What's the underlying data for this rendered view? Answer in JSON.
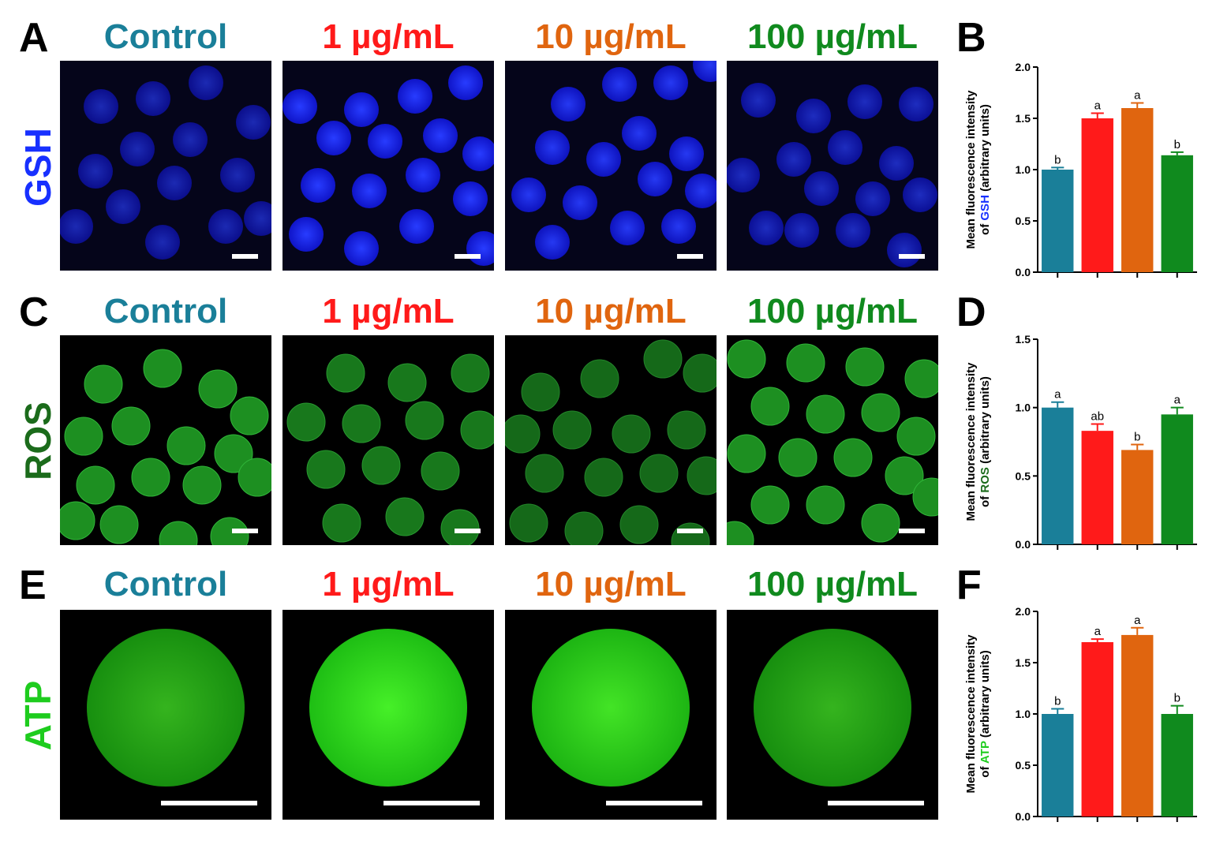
{
  "colors": {
    "control": "#1a7f99",
    "dose1": "#ff1a1a",
    "dose10": "#e0650f",
    "dose100": "#108a1e",
    "gsh": "#1730ff",
    "ros": "#1b6b1b",
    "atp": "#1ecc1e"
  },
  "groups": [
    "Control",
    "1 µg/mL",
    "10 µg/mL",
    "100 µg/mL"
  ],
  "rows": [
    {
      "letter": "A",
      "label": "GSH",
      "chart_letter": "B"
    },
    {
      "letter": "C",
      "label": "ROS",
      "chart_letter": "D"
    },
    {
      "letter": "E",
      "label": "ATP",
      "chart_letter": "F"
    }
  ],
  "chart_data": [
    {
      "type": "bar",
      "panel": "B",
      "ylabel_line1": "Mean fluorescence intensity",
      "ylabel_line2_pre": "of ",
      "ylabel_line2_hl": "GSH",
      "ylabel_line2_post": " (arbitrary units)",
      "ylim": [
        0,
        2.0
      ],
      "yticks": [
        "0.0",
        "0.5",
        "1.0",
        "1.5",
        "2.0"
      ],
      "ytick_values": [
        0,
        0.5,
        1.0,
        1.5,
        2.0
      ],
      "categories": [
        "Control",
        "1 µg/mL",
        "10 µg/mL",
        "100 µg/mL"
      ],
      "values": [
        1.0,
        1.5,
        1.6,
        1.14
      ],
      "errors": [
        0.02,
        0.05,
        0.05,
        0.03
      ],
      "letters": [
        "b",
        "a",
        "a",
        "b"
      ]
    },
    {
      "type": "bar",
      "panel": "D",
      "ylabel_line1": "Mean fluorescence intensity",
      "ylabel_line2_pre": "of ",
      "ylabel_line2_hl": "ROS",
      "ylabel_line2_post": " (arbitrary units)",
      "ylim": [
        0,
        1.5
      ],
      "yticks": [
        "0.0",
        "0.5",
        "1.0",
        "1.5"
      ],
      "ytick_values": [
        0,
        0.5,
        1.0,
        1.5
      ],
      "categories": [
        "Control",
        "1 µg/mL",
        "10 µg/mL",
        "100 µg/mL"
      ],
      "values": [
        1.0,
        0.83,
        0.69,
        0.95
      ],
      "errors": [
        0.04,
        0.05,
        0.04,
        0.05
      ],
      "letters": [
        "a",
        "ab",
        "b",
        "a"
      ]
    },
    {
      "type": "bar",
      "panel": "F",
      "ylabel_line1": "Mean fluorescence intensity",
      "ylabel_line2_pre": "of ",
      "ylabel_line2_hl": "ATP",
      "ylabel_line2_post": " (arbitrary units)",
      "ylim": [
        0,
        2.0
      ],
      "yticks": [
        "0.0",
        "0.5",
        "1.0",
        "1.5",
        "2.0"
      ],
      "ytick_values": [
        0,
        0.5,
        1.0,
        1.5,
        2.0
      ],
      "categories": [
        "Control",
        "1 µg/mL",
        "10 µg/mL",
        "100 µg/mL"
      ],
      "values": [
        1.0,
        1.7,
        1.77,
        1.0
      ],
      "errors": [
        0.05,
        0.03,
        0.07,
        0.08
      ],
      "letters": [
        "b",
        "a",
        "a",
        "b"
      ]
    }
  ]
}
